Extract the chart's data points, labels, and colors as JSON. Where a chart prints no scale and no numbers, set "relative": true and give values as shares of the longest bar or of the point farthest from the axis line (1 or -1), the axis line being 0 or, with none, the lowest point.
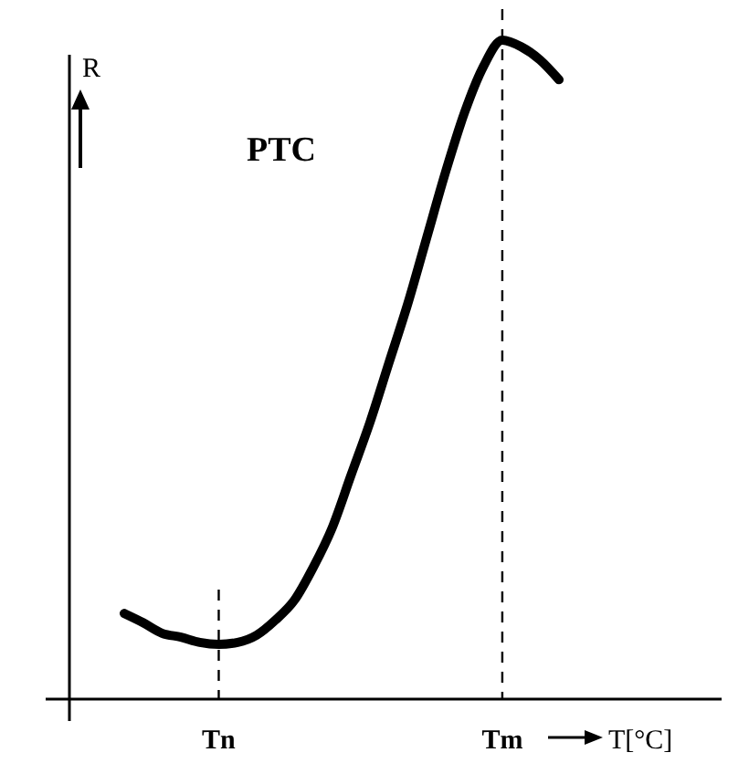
{
  "chart_data": {
    "type": "line",
    "relative": true,
    "xlabel": "T[°C]",
    "ylabel": "R",
    "annotations": [
      "PTC"
    ],
    "line_style": "solid",
    "marker": "none",
    "grid": false,
    "categories": [
      null,
      null,
      null,
      null,
      null,
      "Tn",
      null,
      null,
      null,
      null,
      null,
      null,
      null,
      null,
      null,
      null,
      null,
      null,
      null,
      null,
      "Tm",
      null,
      null,
      null
    ],
    "series": [
      {
        "color": "#000000",
        "values": [
          0.13,
          0.116,
          0.1,
          0.094,
          0.086,
          0.083,
          0.086,
          0.097,
          0.12,
          0.15,
          0.2,
          0.26,
          0.34,
          0.42,
          0.51,
          0.6,
          0.7,
          0.8,
          0.89,
          0.96,
          1,
          0.99,
          0.97,
          0.94
        ]
      }
    ],
    "ref_lines": [
      {
        "axis": "x",
        "value": "Tn",
        "line_style": "dashed",
        "color": "#000000"
      },
      {
        "axis": "x",
        "value": "Tm",
        "line_style": "dashed",
        "color": "#000000"
      }
    ]
  }
}
